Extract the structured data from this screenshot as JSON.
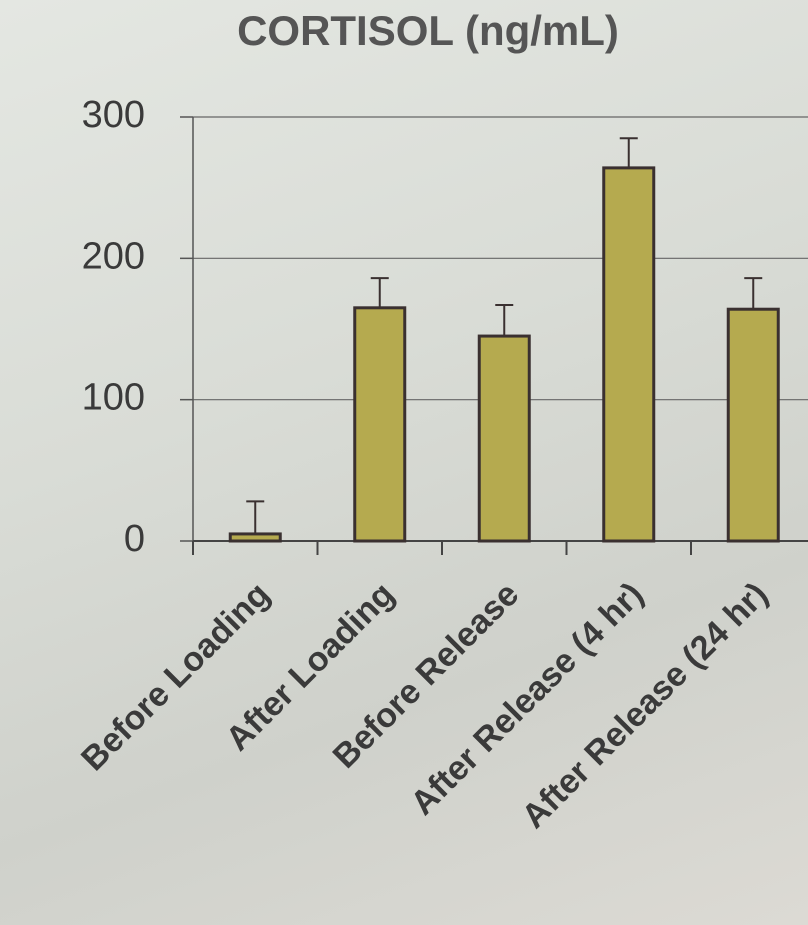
{
  "chart_data": {
    "type": "bar",
    "title": "CORTISOL (ng/mL)",
    "categories": [
      "Before Loading",
      "After Loading",
      "Before Release",
      "After Release (4 hr)",
      "After Release (24 hr)"
    ],
    "values": [
      5,
      165,
      145,
      264,
      164
    ],
    "errors": [
      23,
      21,
      22,
      21,
      22
    ],
    "color": "#b5aa4f",
    "ylim": [
      0,
      300
    ],
    "yticks": [
      0,
      100,
      200,
      300
    ],
    "grid": true
  }
}
